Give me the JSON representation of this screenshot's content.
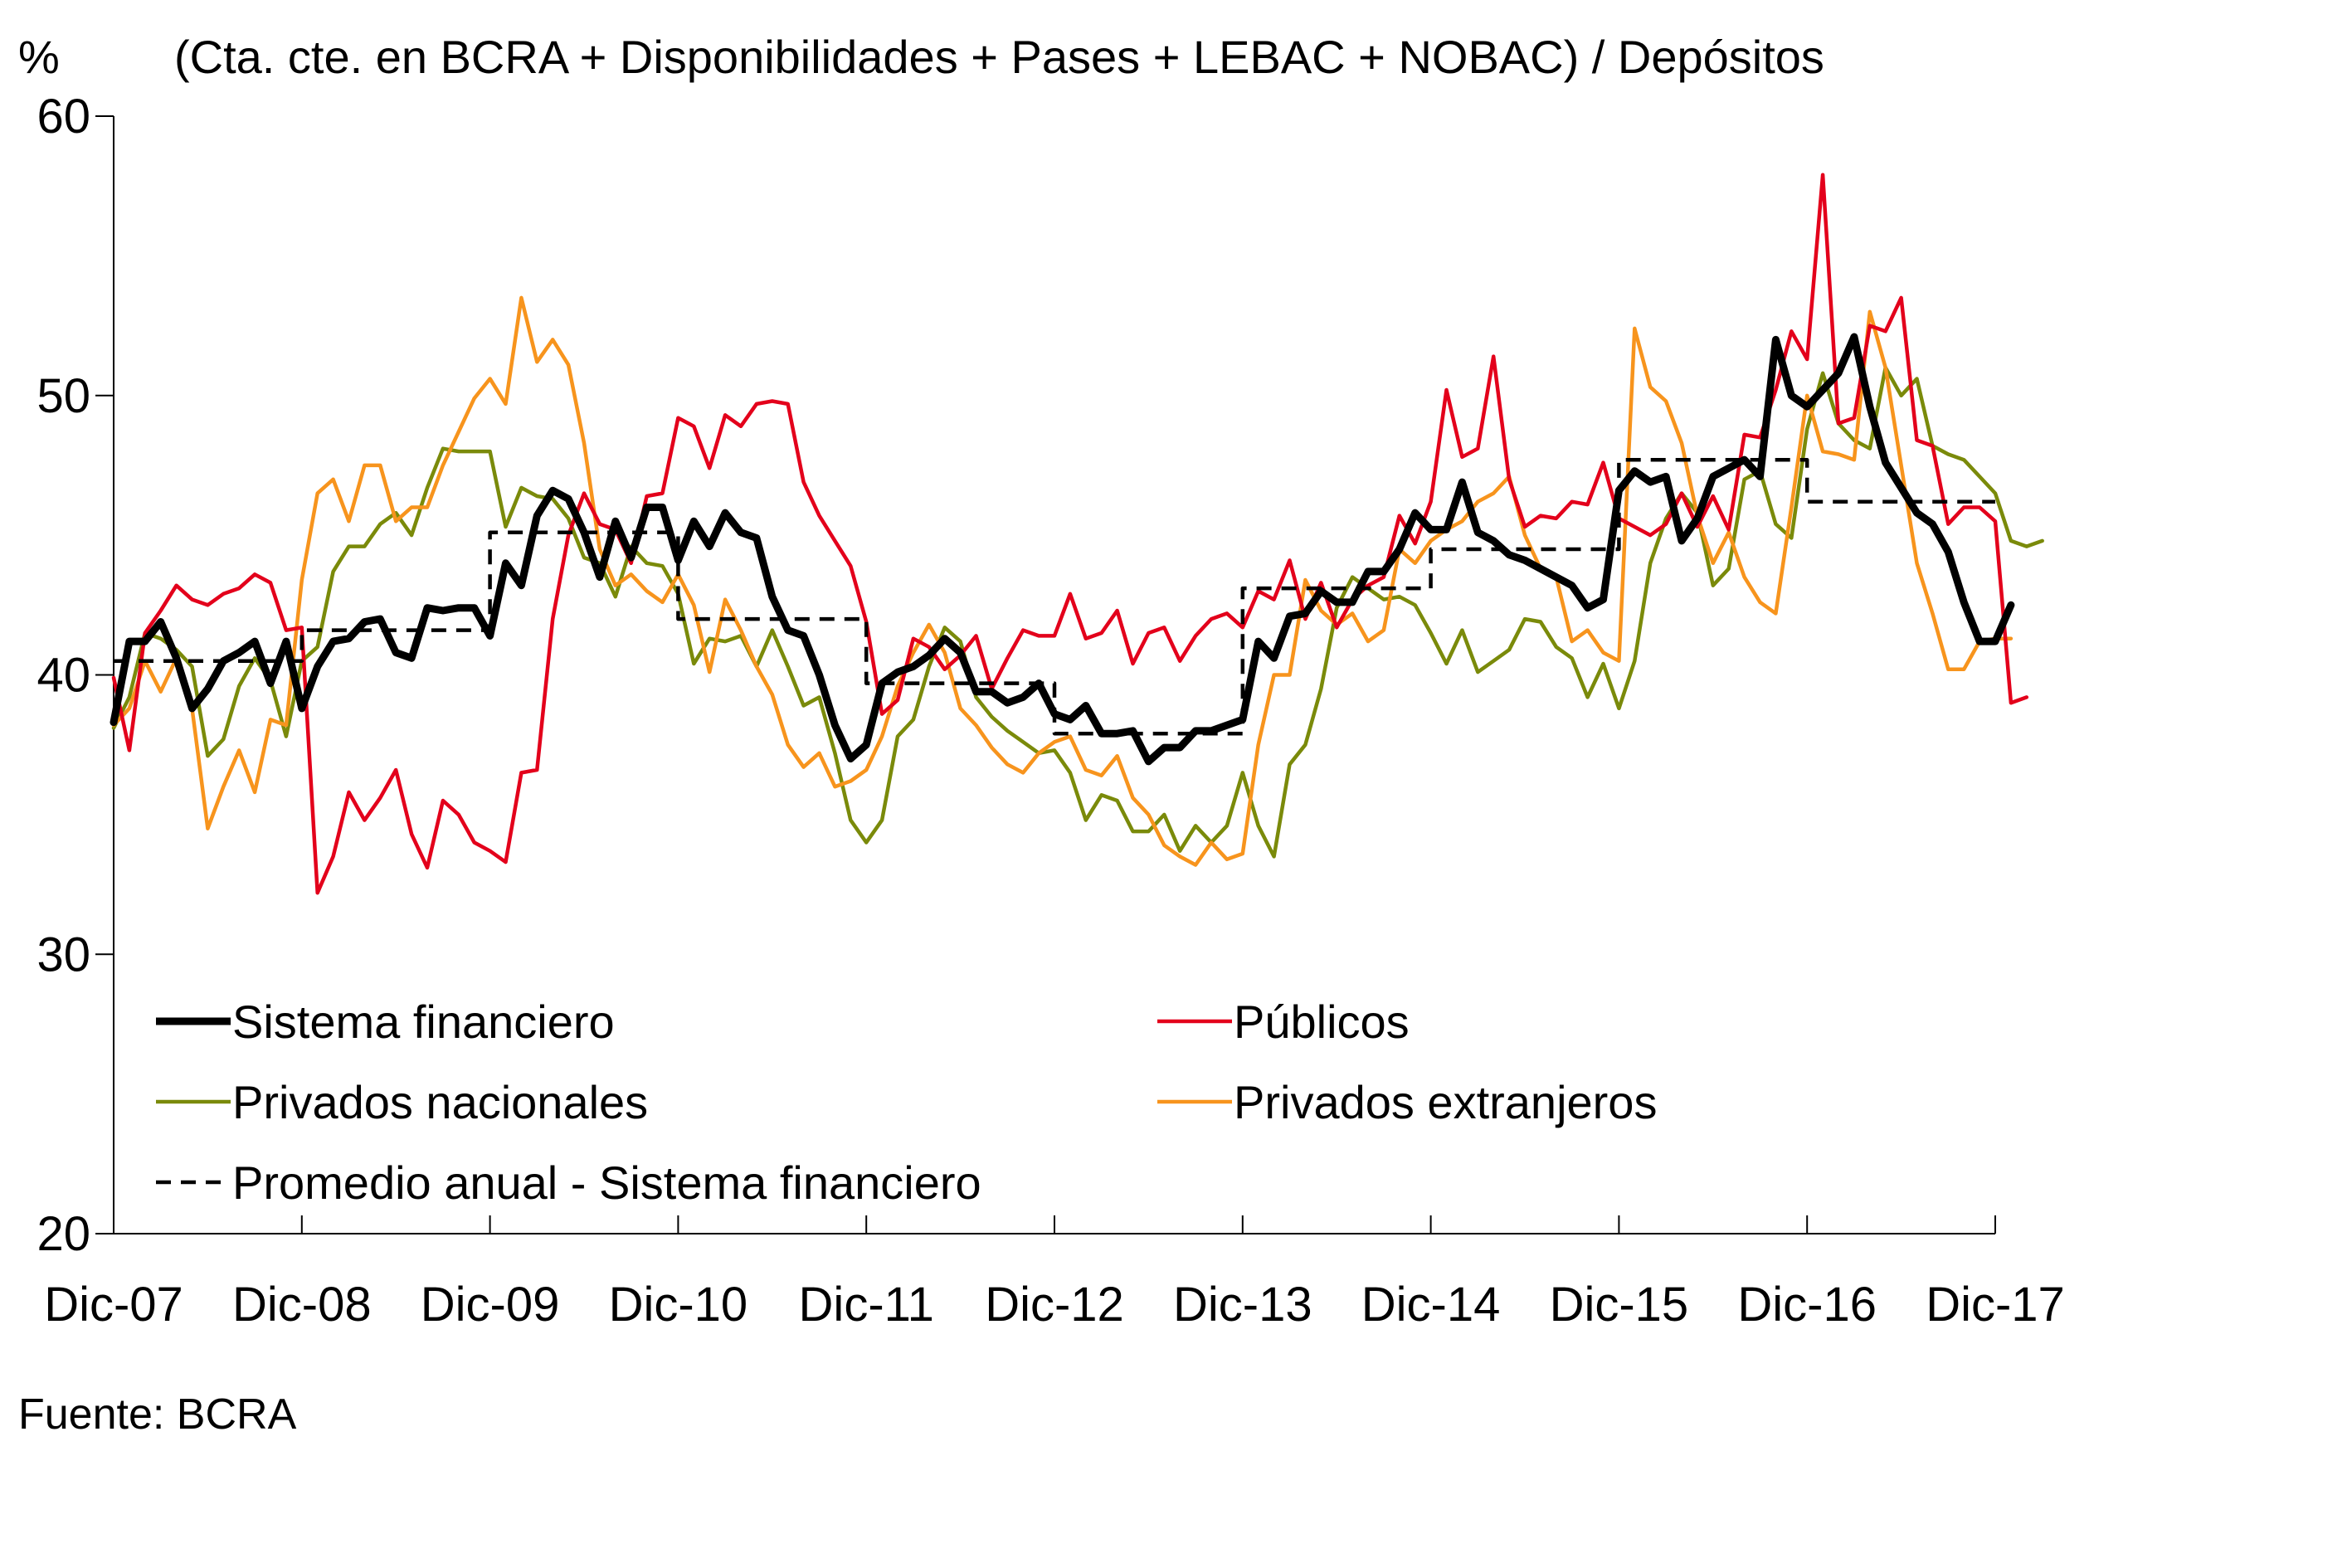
{
  "chart_data": {
    "type": "line",
    "unit_label": "%",
    "title": "(Cta. cte. en BCRA + Disponibilidades + Pases + LEBAC + NOBAC) / Depósitos",
    "source": "Fuente: BCRA",
    "x_start": "Dic-07",
    "x_end": "Dic-17",
    "x_tick_labels": [
      "Dic-07",
      "Dic-08",
      "Dic-09",
      "Dic-10",
      "Dic-11",
      "Dic-12",
      "Dic-13",
      "Dic-14",
      "Dic-15",
      "Dic-16",
      "Dic-17"
    ],
    "ylim": [
      20,
      60
    ],
    "y_ticks": [
      20,
      30,
      40,
      50,
      60
    ],
    "grid": false,
    "legend": "inside-bottom, two columns",
    "colors": {
      "sistema": "#000000",
      "publicos": "#e3001b",
      "nacionales": "#7a8a0a",
      "extranjeros": "#f7941d",
      "promedio": "#000000"
    },
    "series": [
      {
        "key": "sistema",
        "name": "Sistema financiero",
        "values": [
          38.3,
          41.2,
          41.2,
          41.9,
          40.6,
          38.8,
          39.5,
          40.5,
          40.8,
          41.2,
          39.7,
          41.2,
          38.8,
          40.3,
          41.2,
          41.3,
          41.9,
          42.0,
          40.8,
          40.6,
          42.4,
          42.3,
          42.4,
          42.4,
          41.4,
          44.0,
          43.2,
          45.7,
          46.6,
          46.3,
          45.1,
          43.5,
          45.5,
          44.2,
          46.0,
          46.0,
          44.1,
          45.5,
          44.6,
          45.8,
          45.1,
          44.9,
          42.8,
          41.6,
          41.4,
          40.0,
          38.2,
          37.0,
          37.5,
          39.7,
          40.1,
          40.3,
          40.7,
          41.3,
          40.8,
          39.4,
          39.4,
          39.0,
          39.2,
          39.7,
          38.6,
          38.4,
          38.9,
          37.9,
          37.9,
          38.0,
          36.9,
          37.4,
          37.4,
          38.0,
          38.0,
          38.2,
          38.4,
          41.2,
          40.6,
          42.1,
          42.2,
          43.0,
          42.6,
          42.6,
          43.7,
          43.7,
          44.5,
          45.8,
          45.2,
          45.2,
          46.9,
          45.1,
          44.8,
          44.3,
          44.1,
          43.8,
          43.5,
          43.2,
          42.4,
          42.7,
          46.6,
          47.3,
          46.9,
          47.1,
          44.8,
          45.6,
          47.1,
          47.4,
          47.7,
          47.1,
          52.0,
          50.0,
          49.6,
          50.2,
          50.8,
          52.1,
          49.6,
          47.6,
          46.7,
          45.8,
          45.4,
          44.4,
          42.6,
          41.2,
          41.2,
          42.5
        ]
      },
      {
        "key": "publicos",
        "name": "Públicos",
        "values": [
          39.9,
          37.3,
          41.5,
          42.3,
          43.2,
          42.7,
          42.5,
          42.9,
          43.1,
          43.6,
          43.3,
          41.6,
          41.7,
          32.2,
          33.5,
          35.8,
          34.8,
          35.6,
          36.6,
          34.3,
          33.1,
          35.5,
          35.0,
          34.0,
          33.7,
          33.3,
          36.5,
          36.6,
          42.0,
          45.0,
          46.5,
          45.4,
          45.2,
          44.0,
          46.4,
          46.5,
          49.2,
          48.9,
          47.4,
          49.3,
          48.9,
          49.7,
          49.8,
          49.7,
          46.9,
          45.7,
          44.8,
          43.9,
          41.9,
          38.6,
          39.1,
          41.3,
          41.0,
          40.2,
          40.7,
          41.4,
          39.5,
          40.6,
          41.6,
          41.4,
          41.4,
          42.9,
          41.3,
          41.5,
          42.3,
          40.4,
          41.5,
          41.7,
          40.5,
          41.4,
          42.0,
          42.2,
          41.7,
          43.0,
          42.7,
          44.1,
          42.0,
          43.3,
          41.7,
          42.7,
          43.2,
          43.5,
          45.7,
          44.7,
          46.2,
          50.2,
          47.8,
          48.1,
          51.4,
          47.0,
          45.3,
          45.7,
          45.6,
          46.2,
          46.1,
          47.6,
          45.6,
          45.3,
          45.0,
          45.4,
          46.5,
          45.3,
          46.4,
          45.2,
          48.6,
          48.5,
          50.2,
          52.3,
          51.3,
          57.9,
          49.0,
          49.2,
          52.5,
          52.3,
          53.5,
          48.4,
          48.2,
          45.4,
          46.0,
          46.0,
          45.5,
          39.0,
          39.2
        ]
      },
      {
        "key": "nacionales",
        "name": "Privados nacionales",
        "values": [
          38.1,
          39.2,
          41.5,
          41.3,
          40.9,
          40.3,
          37.1,
          37.7,
          39.6,
          40.6,
          39.8,
          37.8,
          40.5,
          41.0,
          43.7,
          44.6,
          44.6,
          45.4,
          45.8,
          45.0,
          46.7,
          48.1,
          48.0,
          48.0,
          48.0,
          45.3,
          46.7,
          46.4,
          46.3,
          45.6,
          44.2,
          44.0,
          42.8,
          44.6,
          44.0,
          43.9,
          42.9,
          40.4,
          41.3,
          41.2,
          41.4,
          40.3,
          41.6,
          40.3,
          38.9,
          39.2,
          37.2,
          34.8,
          34.0,
          34.8,
          37.8,
          38.4,
          40.3,
          41.7,
          41.2,
          39.2,
          38.5,
          38.0,
          37.6,
          37.2,
          37.3,
          36.5,
          34.8,
          35.7,
          35.5,
          34.4,
          34.4,
          35.0,
          33.7,
          34.6,
          34.0,
          34.6,
          36.5,
          34.6,
          33.5,
          36.8,
          37.5,
          39.5,
          42.4,
          43.5,
          43.1,
          42.7,
          42.8,
          42.5,
          41.5,
          40.4,
          41.6,
          40.1,
          40.5,
          40.9,
          42.0,
          41.9,
          41.0,
          40.6,
          39.2,
          40.4,
          38.8,
          40.5,
          44.0,
          45.6,
          46.5,
          45.8,
          43.2,
          43.8,
          47.0,
          47.3,
          45.4,
          44.9,
          48.8,
          50.8,
          49.0,
          48.4,
          48.1,
          51.0,
          50.0,
          50.6,
          48.2,
          47.9,
          47.7,
          47.1,
          46.5,
          44.8,
          44.6,
          44.8
        ]
      },
      {
        "key": "extranjeros",
        "name": "Privados extranjeros",
        "values": [
          38.2,
          38.8,
          40.5,
          39.4,
          40.6,
          38.8,
          34.5,
          36.0,
          37.3,
          35.8,
          38.4,
          38.2,
          43.4,
          46.5,
          47.0,
          45.5,
          47.5,
          47.5,
          45.5,
          46.0,
          46.0,
          47.5,
          48.7,
          49.9,
          50.6,
          49.7,
          53.5,
          51.2,
          52.0,
          51.1,
          48.3,
          44.5,
          43.2,
          43.6,
          43.0,
          42.6,
          43.6,
          42.5,
          40.1,
          42.7,
          41.6,
          40.3,
          39.3,
          37.5,
          36.7,
          37.2,
          36.0,
          36.2,
          36.6,
          37.8,
          39.6,
          40.8,
          41.8,
          40.8,
          38.8,
          38.2,
          37.4,
          36.8,
          36.5,
          37.2,
          37.6,
          37.8,
          36.6,
          36.4,
          37.1,
          35.6,
          35.0,
          33.9,
          33.5,
          33.2,
          34.0,
          33.4,
          33.6,
          37.5,
          40.0,
          40.0,
          43.4,
          42.3,
          41.8,
          42.2,
          41.2,
          41.6,
          44.5,
          44.0,
          44.8,
          45.2,
          45.5,
          46.2,
          46.5,
          47.1,
          45.0,
          43.8,
          43.5,
          41.2,
          41.6,
          40.8,
          40.5,
          52.4,
          50.3,
          49.8,
          48.3,
          45.7,
          44.0,
          45.1,
          43.5,
          42.6,
          42.2,
          46.0,
          50.0,
          48.0,
          47.9,
          47.7,
          53.0,
          51.0,
          47.5,
          44.0,
          42.2,
          40.2,
          40.2,
          41.2,
          41.3,
          41.3
        ]
      },
      {
        "key": "promedio",
        "name": "Promedio anual - Sistema financiero",
        "dashed": true,
        "steps": [
          {
            "from": 0,
            "to": 12,
            "value": 40.5
          },
          {
            "from": 12,
            "to": 24,
            "value": 41.6
          },
          {
            "from": 24,
            "to": 36,
            "value": 45.1
          },
          {
            "from": 36,
            "to": 48,
            "value": 42.0
          },
          {
            "from": 48,
            "to": 60,
            "value": 39.7
          },
          {
            "from": 60,
            "to": 72,
            "value": 37.9
          },
          {
            "from": 72,
            "to": 84,
            "value": 43.1
          },
          {
            "from": 84,
            "to": 96,
            "value": 44.5
          },
          {
            "from": 96,
            "to": 108,
            "value": 47.7
          },
          {
            "from": 108,
            "to": 120,
            "value": 46.2
          }
        ]
      }
    ]
  }
}
